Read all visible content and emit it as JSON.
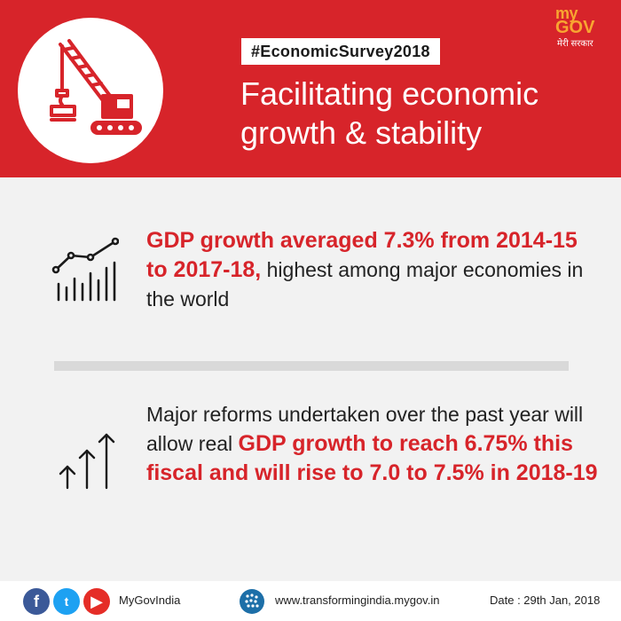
{
  "header": {
    "hashtag": "#EconomicSurvey2018",
    "title": "Facilitating economic growth & stability",
    "logo_my": "my",
    "logo_gov": "GOV",
    "logo_sub": "मेरी सरकार",
    "icon": "crane-icon",
    "colors": {
      "header_bg": "#d7242a",
      "accent_red": "#d7242a",
      "logo_orange": "#f8a531"
    }
  },
  "points": [
    {
      "icon": "line-bar-chart-icon",
      "highlight": "GDP growth averaged 7.3% from 2014-15 to 2017-18,",
      "text": " highest among major economies in the world"
    },
    {
      "icon": "upward-arrows-icon",
      "text": "Major reforms undertaken over the past year will allow real ",
      "highlight": "GDP growth to reach 6.75% this fiscal and will rise to 7.0 to 7.5% in 2018-19"
    }
  ],
  "footer": {
    "handle": "MyGovIndia",
    "url": "www.transformingindia.mygov.in",
    "date": "Date : 29th Jan, 2018",
    "facebook_glyph": "f",
    "twitter_glyph": "t",
    "youtube_glyph": "▶"
  }
}
